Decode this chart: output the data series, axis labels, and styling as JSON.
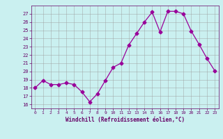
{
  "x": [
    0,
    1,
    2,
    3,
    4,
    5,
    6,
    7,
    8,
    9,
    10,
    11,
    12,
    13,
    14,
    15,
    16,
    17,
    18,
    19,
    20,
    21,
    22,
    23
  ],
  "y": [
    18.0,
    18.9,
    18.4,
    18.4,
    18.6,
    18.4,
    17.5,
    16.3,
    17.3,
    18.9,
    20.5,
    21.0,
    23.2,
    24.6,
    26.0,
    27.2,
    24.8,
    27.3,
    27.3,
    27.0,
    24.9,
    23.3,
    21.6,
    20.1
  ],
  "line_color": "#990099",
  "marker": "D",
  "marker_size": 2.5,
  "background_color": "#caf0f0",
  "grid_color": "#999999",
  "xlabel": "Windchill (Refroidissement éolien,°C)",
  "xlabel_color": "#660066",
  "tick_color": "#660066",
  "ylim": [
    15.5,
    28.0
  ],
  "xlim": [
    -0.5,
    23.5
  ],
  "yticks": [
    16,
    17,
    18,
    19,
    20,
    21,
    22,
    23,
    24,
    25,
    26,
    27
  ],
  "xticks": [
    0,
    1,
    2,
    3,
    4,
    5,
    6,
    7,
    8,
    9,
    10,
    11,
    12,
    13,
    14,
    15,
    16,
    17,
    18,
    19,
    20,
    21,
    22,
    23
  ]
}
